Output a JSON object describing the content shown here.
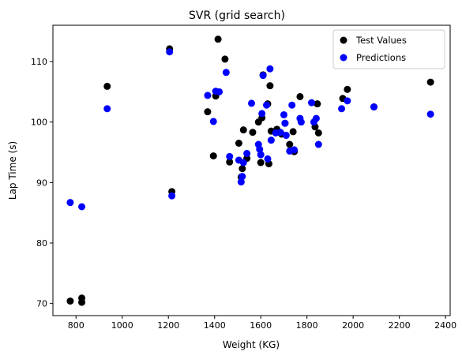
{
  "chart_data": {
    "type": "scatter",
    "title": "SVR (grid search)",
    "xlabel": "Weight (KG)",
    "ylabel": "Lap Time (s)",
    "xlim": [
      700,
      2420
    ],
    "ylim": [
      68,
      116
    ],
    "xticks": [
      800,
      1000,
      1200,
      1400,
      1600,
      1800,
      2000,
      2200,
      2400
    ],
    "yticks": [
      70,
      80,
      90,
      100,
      110
    ],
    "legend_position": "top-right",
    "grid": false,
    "series": [
      {
        "name": "Test Values",
        "color": "#000000",
        "points": [
          [
            775,
            70.4
          ],
          [
            825,
            70.2
          ],
          [
            825,
            70.9
          ],
          [
            935,
            105.9
          ],
          [
            1205,
            112.1
          ],
          [
            1215,
            88.5
          ],
          [
            1370,
            101.7
          ],
          [
            1395,
            94.4
          ],
          [
            1405,
            104.3
          ],
          [
            1415,
            113.7
          ],
          [
            1445,
            110.4
          ],
          [
            1465,
            93.4
          ],
          [
            1505,
            96.5
          ],
          [
            1515,
            90.9
          ],
          [
            1520,
            92.3
          ],
          [
            1525,
            98.7
          ],
          [
            1540,
            94.0
          ],
          [
            1565,
            98.3
          ],
          [
            1590,
            100.0
          ],
          [
            1600,
            93.3
          ],
          [
            1605,
            100.7
          ],
          [
            1610,
            107.8
          ],
          [
            1630,
            103.0
          ],
          [
            1635,
            93.1
          ],
          [
            1640,
            106.0
          ],
          [
            1645,
            98.5
          ],
          [
            1670,
            98.8
          ],
          [
            1690,
            98.0
          ],
          [
            1705,
            99.8
          ],
          [
            1725,
            96.3
          ],
          [
            1740,
            98.4
          ],
          [
            1745,
            95.1
          ],
          [
            1770,
            104.2
          ],
          [
            1835,
            99.2
          ],
          [
            1845,
            103.0
          ],
          [
            1850,
            98.2
          ],
          [
            1955,
            103.9
          ],
          [
            1975,
            105.4
          ],
          [
            2090,
            102.5
          ],
          [
            2335,
            106.6
          ]
        ]
      },
      {
        "name": "Predictions",
        "color": "#0000ff",
        "points": [
          [
            775,
            86.7
          ],
          [
            825,
            86.0
          ],
          [
            935,
            102.2
          ],
          [
            1205,
            111.6
          ],
          [
            1215,
            87.8
          ],
          [
            1370,
            104.4
          ],
          [
            1395,
            100.1
          ],
          [
            1405,
            105.1
          ],
          [
            1420,
            105.0
          ],
          [
            1450,
            108.2
          ],
          [
            1465,
            94.3
          ],
          [
            1505,
            93.7
          ],
          [
            1515,
            90.1
          ],
          [
            1520,
            91.0
          ],
          [
            1525,
            93.3
          ],
          [
            1540,
            94.8
          ],
          [
            1560,
            103.1
          ],
          [
            1590,
            96.3
          ],
          [
            1595,
            95.5
          ],
          [
            1600,
            94.6
          ],
          [
            1605,
            101.4
          ],
          [
            1610,
            107.7
          ],
          [
            1625,
            102.8
          ],
          [
            1630,
            93.9
          ],
          [
            1640,
            108.8
          ],
          [
            1645,
            97.0
          ],
          [
            1665,
            98.2
          ],
          [
            1685,
            98.3
          ],
          [
            1700,
            101.2
          ],
          [
            1705,
            99.8
          ],
          [
            1710,
            97.8
          ],
          [
            1725,
            95.2
          ],
          [
            1735,
            102.8
          ],
          [
            1745,
            95.4
          ],
          [
            1770,
            100.6
          ],
          [
            1775,
            100.0
          ],
          [
            1820,
            103.2
          ],
          [
            1830,
            100.0
          ],
          [
            1840,
            100.6
          ],
          [
            1850,
            96.3
          ],
          [
            1950,
            102.2
          ],
          [
            1975,
            103.5
          ],
          [
            2090,
            102.5
          ],
          [
            2335,
            101.3
          ]
        ]
      }
    ]
  }
}
